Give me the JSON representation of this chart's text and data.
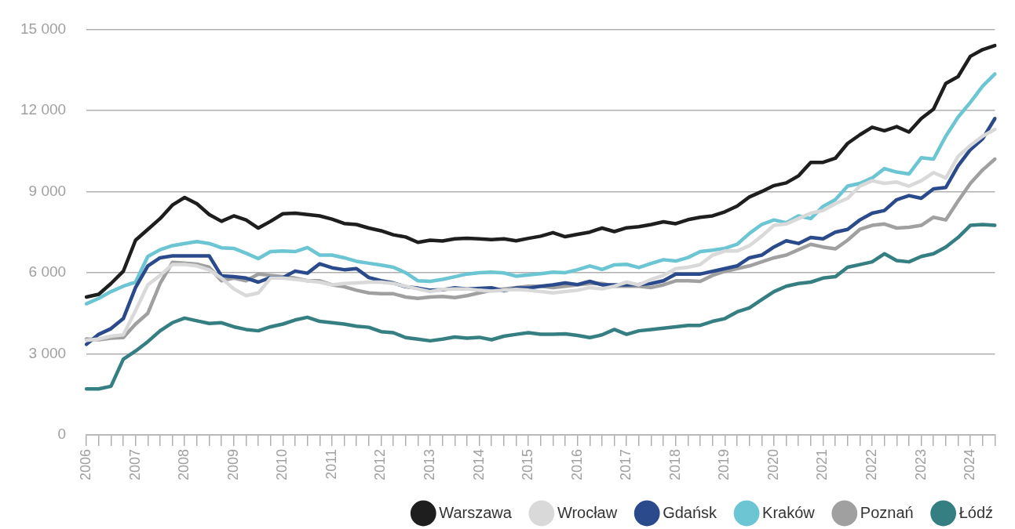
{
  "chart_data": {
    "type": "line",
    "categories": [
      "2006",
      null,
      null,
      null,
      "2007",
      null,
      null,
      null,
      "2008",
      null,
      null,
      null,
      "2009",
      null,
      null,
      null,
      "2010",
      null,
      null,
      null,
      "2011",
      null,
      null,
      null,
      "2012",
      null,
      null,
      null,
      "2013",
      null,
      null,
      null,
      "2014",
      null,
      null,
      null,
      "2015",
      null,
      null,
      null,
      "2016",
      null,
      null,
      null,
      "2017",
      null,
      null,
      null,
      "2018",
      null,
      null,
      null,
      "2019",
      null,
      null,
      null,
      "2020",
      null,
      null,
      null,
      "2021",
      null,
      null,
      null,
      "2022",
      null,
      null,
      null,
      "2023",
      null,
      null,
      null,
      "2024",
      null,
      null
    ],
    "series": [
      {
        "name": "Warszawa",
        "color": "#1e1e1e",
        "values": [
          5100,
          5200,
          5600,
          6050,
          7200,
          7600,
          8000,
          8500,
          8780,
          8550,
          8150,
          7900,
          8100,
          7950,
          7650,
          7900,
          8180,
          8200,
          8150,
          8100,
          7980,
          7820,
          7780,
          7650,
          7550,
          7400,
          7320,
          7120,
          7200,
          7170,
          7250,
          7270,
          7250,
          7220,
          7250,
          7180,
          7270,
          7350,
          7480,
          7330,
          7420,
          7500,
          7650,
          7520,
          7660,
          7700,
          7780,
          7880,
          7810,
          7960,
          8050,
          8100,
          8250,
          8460,
          8800,
          9000,
          9220,
          9320,
          9580,
          10080,
          10080,
          10230,
          10780,
          11100,
          11380,
          11250,
          11400,
          11200,
          11700,
          12050,
          13000,
          13250,
          14000,
          14250,
          14400
        ]
      },
      {
        "name": "Wrocław",
        "color": "#d9d9d9",
        "values": [
          3500,
          3550,
          3650,
          3700,
          4600,
          5550,
          5900,
          6300,
          6300,
          6250,
          6100,
          5800,
          5400,
          5150,
          5250,
          5800,
          5800,
          5750,
          5700,
          5650,
          5550,
          5600,
          5620,
          5650,
          5650,
          5600,
          5500,
          5400,
          5300,
          5380,
          5400,
          5400,
          5350,
          5320,
          5350,
          5380,
          5350,
          5300,
          5250,
          5300,
          5350,
          5450,
          5400,
          5500,
          5650,
          5550,
          5750,
          5900,
          6150,
          6200,
          6300,
          6650,
          6800,
          6800,
          7000,
          7350,
          7750,
          7800,
          8000,
          8200,
          8300,
          8550,
          8750,
          9200,
          9400,
          9300,
          9350,
          9200,
          9400,
          9700,
          9500,
          10300,
          10700,
          11050,
          11300
        ]
      },
      {
        "name": "Gdańsk",
        "color": "#2b4a8c",
        "values": [
          3350,
          3720,
          3930,
          4300,
          5450,
          6250,
          6550,
          6620,
          6620,
          6620,
          6620,
          5880,
          5850,
          5800,
          5650,
          5820,
          5820,
          6060,
          5980,
          6330,
          6180,
          6110,
          6150,
          5820,
          5700,
          5620,
          5480,
          5430,
          5350,
          5370,
          5440,
          5400,
          5420,
          5440,
          5330,
          5430,
          5430,
          5500,
          5550,
          5620,
          5560,
          5680,
          5550,
          5550,
          5550,
          5560,
          5600,
          5700,
          5950,
          5950,
          5950,
          6050,
          6150,
          6250,
          6550,
          6650,
          6950,
          7180,
          7080,
          7300,
          7250,
          7500,
          7600,
          7950,
          8200,
          8300,
          8700,
          8850,
          8750,
          9100,
          9150,
          9950,
          10550,
          10950,
          11700
        ]
      },
      {
        "name": "Kraków",
        "color": "#6bc5d2",
        "values": [
          4850,
          5050,
          5300,
          5500,
          5650,
          6600,
          6850,
          7000,
          7080,
          7150,
          7080,
          6920,
          6900,
          6720,
          6520,
          6780,
          6800,
          6780,
          6930,
          6650,
          6650,
          6550,
          6420,
          6350,
          6280,
          6200,
          6000,
          5700,
          5680,
          5750,
          5850,
          5950,
          6000,
          6020,
          5990,
          5870,
          5920,
          5960,
          6020,
          6000,
          6110,
          6250,
          6120,
          6290,
          6310,
          6190,
          6340,
          6480,
          6430,
          6560,
          6780,
          6830,
          6900,
          7050,
          7450,
          7780,
          7950,
          7850,
          8100,
          8000,
          8450,
          8700,
          9200,
          9300,
          9500,
          9850,
          9720,
          9650,
          10250,
          10200,
          11050,
          11750,
          12300,
          12900,
          13350
        ]
      },
      {
        "name": "Poznań",
        "color": "#a0a0a0",
        "values": [
          3550,
          3520,
          3580,
          3600,
          4100,
          4500,
          5600,
          6380,
          6350,
          6320,
          6200,
          5700,
          5800,
          5700,
          5950,
          5900,
          5850,
          5800,
          5700,
          5700,
          5550,
          5480,
          5350,
          5250,
          5220,
          5220,
          5100,
          5050,
          5100,
          5120,
          5080,
          5150,
          5250,
          5350,
          5400,
          5450,
          5500,
          5500,
          5450,
          5500,
          5550,
          5600,
          5600,
          5500,
          5500,
          5500,
          5450,
          5550,
          5700,
          5700,
          5680,
          5900,
          6050,
          6150,
          6250,
          6400,
          6550,
          6650,
          6850,
          7050,
          6950,
          6880,
          7200,
          7600,
          7750,
          7800,
          7650,
          7680,
          7750,
          8050,
          7950,
          8650,
          9300,
          9800,
          10200
        ]
      },
      {
        "name": "Łódź",
        "color": "#357f82",
        "values": [
          1700,
          1700,
          1800,
          2800,
          3100,
          3450,
          3850,
          4150,
          4320,
          4220,
          4120,
          4150,
          4000,
          3900,
          3850,
          4000,
          4100,
          4250,
          4350,
          4200,
          4150,
          4100,
          4020,
          3980,
          3820,
          3780,
          3600,
          3540,
          3480,
          3540,
          3620,
          3580,
          3610,
          3520,
          3650,
          3720,
          3780,
          3720,
          3720,
          3740,
          3680,
          3600,
          3700,
          3900,
          3720,
          3850,
          3900,
          3950,
          4000,
          4050,
          4050,
          4200,
          4300,
          4550,
          4700,
          5000,
          5300,
          5500,
          5600,
          5650,
          5800,
          5850,
          6200,
          6300,
          6400,
          6700,
          6450,
          6400,
          6600,
          6700,
          6950,
          7300,
          7750,
          7780,
          7750
        ]
      }
    ],
    "ylim": [
      0,
      15000
    ],
    "yticks": [
      {
        "value": 0,
        "label": "0"
      },
      {
        "value": 3000,
        "label": "3 000"
      },
      {
        "value": 6000,
        "label": "6 000"
      },
      {
        "value": 9000,
        "label": "9 000"
      },
      {
        "value": 12000,
        "label": "12 000"
      },
      {
        "value": 15000,
        "label": "15 000"
      }
    ],
    "grid": "y",
    "legend": "bottom right",
    "marker": "none",
    "line_style": "solid"
  }
}
